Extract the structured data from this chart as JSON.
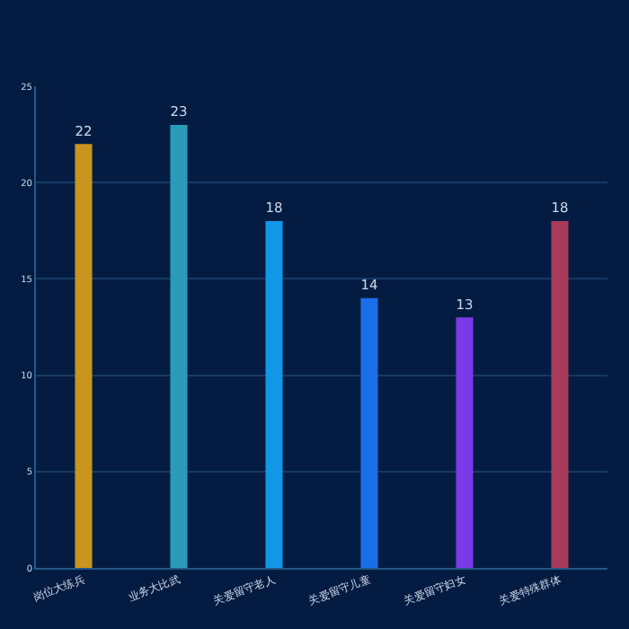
{
  "chart_data": {
    "type": "bar",
    "categories": [
      "岗位大练兵",
      "业务大比武",
      "关爱留守老人",
      "关爱留守儿童",
      "关爱留守妇女",
      "关爱特殊群体"
    ],
    "values": [
      22,
      23,
      18,
      14,
      13,
      18
    ],
    "colors": [
      "#c8961e",
      "#2a9cb8",
      "#1296e8",
      "#1a6ee8",
      "#7a3ae8",
      "#a83a5a"
    ],
    "ylim": [
      0,
      25
    ],
    "yticks": [
      0,
      5,
      10,
      15,
      20,
      25
    ],
    "grid": "y",
    "data_labels": true
  }
}
